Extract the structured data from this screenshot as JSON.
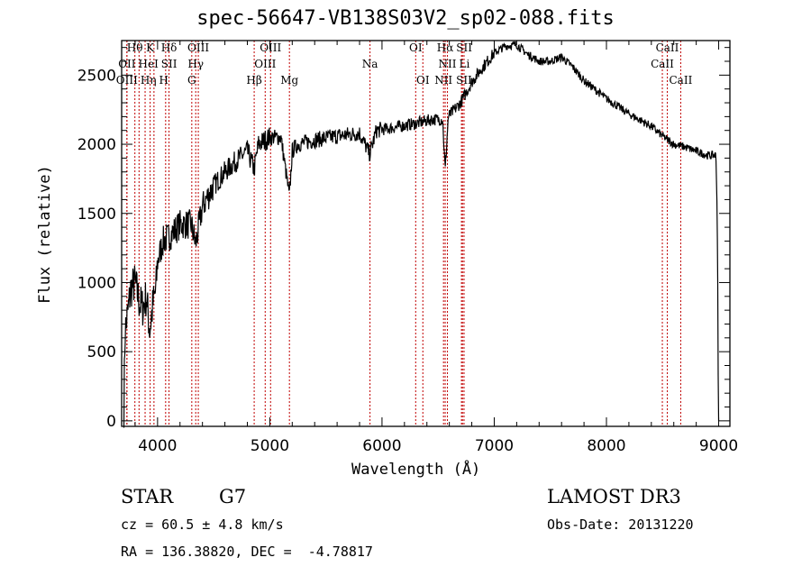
{
  "chart_data": {
    "type": "line",
    "title": "spec-56647-VB138S03V2_sp02-088.fits",
    "xlabel": "Wavelength (Å)",
    "ylabel": "Flux (relative)",
    "xlim": [
      3680,
      9100
    ],
    "ylim": [
      -40,
      2750
    ],
    "xticks": [
      4000,
      5000,
      6000,
      7000,
      8000,
      9000
    ],
    "xtick_labels": [
      "4000",
      "5000",
      "6000",
      "7000",
      "8000",
      "9000"
    ],
    "yticks": [
      0,
      500,
      1000,
      1500,
      2000,
      2500
    ],
    "ytick_labels": [
      "0",
      "500",
      "1000",
      "1500",
      "2000",
      "2500"
    ],
    "grid": false,
    "series": [
      {
        "name": "spectrum",
        "color": "#000000",
        "anchors": [
          [
            3700,
            100
          ],
          [
            3710,
            650
          ],
          [
            3730,
            750
          ],
          [
            3760,
            950
          ],
          [
            3800,
            1000
          ],
          [
            3840,
            850
          ],
          [
            3870,
            820
          ],
          [
            3900,
            900
          ],
          [
            3930,
            650
          ],
          [
            3960,
            850
          ],
          [
            3985,
            950
          ],
          [
            4000,
            1150
          ],
          [
            4050,
            1300
          ],
          [
            4100,
            1330
          ],
          [
            4200,
            1420
          ],
          [
            4300,
            1420
          ],
          [
            4340,
            1280
          ],
          [
            4400,
            1550
          ],
          [
            4500,
            1700
          ],
          [
            4600,
            1800
          ],
          [
            4700,
            1880
          ],
          [
            4800,
            1950
          ],
          [
            4860,
            1820
          ],
          [
            4900,
            2000
          ],
          [
            5000,
            2050
          ],
          [
            5100,
            2050
          ],
          [
            5175,
            1620
          ],
          [
            5200,
            1950
          ],
          [
            5250,
            2000
          ],
          [
            5400,
            2030
          ],
          [
            5600,
            2060
          ],
          [
            5800,
            2080
          ],
          [
            5890,
            1930
          ],
          [
            5950,
            2100
          ],
          [
            6100,
            2120
          ],
          [
            6300,
            2150
          ],
          [
            6450,
            2180
          ],
          [
            6540,
            2180
          ],
          [
            6563,
            1810
          ],
          [
            6590,
            2200
          ],
          [
            6700,
            2300
          ],
          [
            6800,
            2450
          ],
          [
            6900,
            2560
          ],
          [
            7000,
            2660
          ],
          [
            7100,
            2710
          ],
          [
            7200,
            2720
          ],
          [
            7300,
            2650
          ],
          [
            7400,
            2600
          ],
          [
            7500,
            2600
          ],
          [
            7600,
            2630
          ],
          [
            7700,
            2560
          ],
          [
            7800,
            2460
          ],
          [
            8000,
            2330
          ],
          [
            8200,
            2220
          ],
          [
            8400,
            2130
          ],
          [
            8500,
            2060
          ],
          [
            8600,
            2000
          ],
          [
            8700,
            1980
          ],
          [
            8800,
            1950
          ],
          [
            8900,
            1920
          ],
          [
            8975,
            1920
          ],
          [
            8985,
            1550
          ],
          [
            8992,
            1000
          ],
          [
            8996,
            330
          ],
          [
            9000,
            0
          ]
        ]
      }
    ],
    "lines": [
      {
        "label": "Hθ",
        "wl": 3798,
        "row": 0,
        "color": "#c00000"
      },
      {
        "label": "K",
        "wl": 3934,
        "row": 0,
        "color": "#c00000"
      },
      {
        "label": "Hδ",
        "wl": 4102,
        "row": 0,
        "color": "#c00000"
      },
      {
        "label": "OIII",
        "wl": 4363,
        "row": 0,
        "color": "#c00000"
      },
      {
        "label": "OIII",
        "wl": 5007,
        "row": 0,
        "color": "#c00000"
      },
      {
        "label": "OI",
        "wl": 6300,
        "row": 0,
        "color": "#c00000"
      },
      {
        "label": "Hα",
        "wl": 6563,
        "row": 0,
        "color": "#c00000"
      },
      {
        "label": "SII",
        "wl": 6717,
        "row": 0,
        "color": "#c00000"
      },
      {
        "label": "CaII",
        "wl": 8542,
        "row": 0,
        "color": "#c00000"
      },
      {
        "label": "OII",
        "wl": 3727,
        "row": 1,
        "color": "#c00000"
      },
      {
        "label": "HeI",
        "wl": 3889,
        "row": 1,
        "color": "#c00000"
      },
      {
        "label": "SII",
        "wl": 4072,
        "row": 1,
        "color": "#c00000"
      },
      {
        "label": "Hγ",
        "wl": 4340,
        "row": 1,
        "color": "#c00000"
      },
      {
        "label": "OIII",
        "wl": 4959,
        "row": 1,
        "color": "#c00000"
      },
      {
        "label": "Na",
        "wl": 5893,
        "row": 1,
        "color": "#c00000"
      },
      {
        "label": "NII",
        "wl": 6583,
        "row": 1,
        "color": "#c00000"
      },
      {
        "label": "Li",
        "wl": 6708,
        "row": 1,
        "color": "#c00000"
      },
      {
        "label": "CaII",
        "wl": 8498,
        "row": 1,
        "color": "#c00000"
      },
      {
        "label": "OIII",
        "wl": 3727,
        "row": 2,
        "color": "#c00000"
      },
      {
        "label": "Hη",
        "wl": 3835,
        "row": 2,
        "color": "#c00000"
      },
      {
        "label": "H",
        "wl": 3968,
        "row": 2,
        "color": "#c00000"
      },
      {
        "label": "G",
        "wl": 4305,
        "row": 2,
        "color": "#c00000"
      },
      {
        "label": "Hβ",
        "wl": 4861,
        "row": 2,
        "color": "#c00000"
      },
      {
        "label": "Mg",
        "wl": 5175,
        "row": 2,
        "color": "#c00000"
      },
      {
        "label": "OI",
        "wl": 6364,
        "row": 2,
        "color": "#c00000"
      },
      {
        "label": "NII",
        "wl": 6548,
        "row": 2,
        "color": "#c00000"
      },
      {
        "label": "SII",
        "wl": 6731,
        "row": 2,
        "color": "#c00000"
      },
      {
        "label": "CaII",
        "wl": 8662,
        "row": 2,
        "color": "#c00000"
      }
    ]
  },
  "info": {
    "object_type": "STAR",
    "subclass": "G7",
    "redshift": "cz = 60.5 ± 4.8 km/s",
    "coords": "RA = 136.38820, DEC =  -4.78817",
    "survey": "LAMOST DR3",
    "obs_date": "Obs-Date: 20131220"
  }
}
